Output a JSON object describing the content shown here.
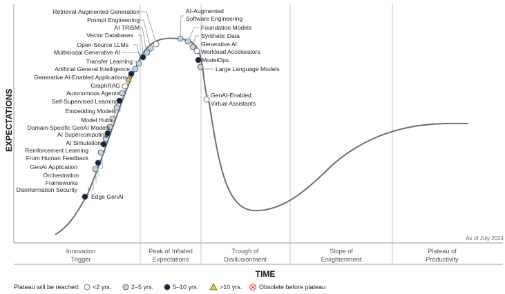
{
  "axes": {
    "y_label": "EXPECTATIONS",
    "x_label": "TIME"
  },
  "as_of": "As of July 2024",
  "phases": [
    {
      "line1": "Innovation",
      "line2": "Trigger"
    },
    {
      "line1": "Peak of Inflated",
      "line2": "Expectations"
    },
    {
      "line1": "Trough of",
      "line2": "Disillusionment"
    },
    {
      "line1": "Slope of",
      "line2": "Enlightenment"
    },
    {
      "line1": "Plateau of",
      "line2": "Productivity"
    }
  ],
  "legend": {
    "title": "Plateau will be reached:",
    "items": [
      {
        "marker": "white-circle",
        "label": "<2 yrs."
      },
      {
        "marker": "light-blue-circle",
        "label": "2–5 yrs."
      },
      {
        "marker": "navy-circle",
        "label": "5–10 yrs."
      },
      {
        "marker": "yellow-triangle",
        "label": ">10 yrs."
      },
      {
        "marker": "red-x-circle",
        "label": "Obsolete before plateau"
      }
    ]
  },
  "colors": {
    "white": "#ffffff",
    "light_blue": "#bcd6ea",
    "navy": "#12264a",
    "yellow": "#f5c518",
    "red": "#e03a3a",
    "curve": "#6d6d6d",
    "grid": "#c4c4c4"
  },
  "technologies": [
    {
      "name": "Retrieval-Augmented Generation",
      "marker": "light-blue-circle"
    },
    {
      "name": "Prompt Engineering",
      "marker": "light-blue-circle"
    },
    {
      "name": "AI TRiSM",
      "marker": "white-circle"
    },
    {
      "name": "Vector Databases",
      "marker": "light-blue-circle"
    },
    {
      "name": "Open-Source LLMs",
      "marker": "light-blue-circle"
    },
    {
      "name": "Multimodal Generative AI",
      "marker": "navy-circle"
    },
    {
      "name": "Transfer Learning",
      "marker": "light-blue-circle"
    },
    {
      "name": "Artificial General Intelligence",
      "marker": "light-blue-circle"
    },
    {
      "name": "Generative AI-Enabled Applications",
      "marker": "navy-circle"
    },
    {
      "name": "GraphRAG",
      "marker": "yellow-triangle"
    },
    {
      "name": "Autonomous Agents",
      "marker": "white-circle"
    },
    {
      "name": "Self-Supervised Learning",
      "marker": "light-blue-circle"
    },
    {
      "name": "Embedding Models",
      "marker": "navy-circle"
    },
    {
      "name": "Model Hubs",
      "marker": "light-blue-circle"
    },
    {
      "name": "Domain-Specific GenAI Models",
      "marker": "light-blue-circle"
    },
    {
      "name": "AI Supercomputing",
      "marker": "light-blue-circle"
    },
    {
      "name": "AI Simulation",
      "marker": "navy-circle"
    },
    {
      "name": "Reinforcement Learning",
      "marker": "light-blue-circle"
    },
    {
      "name": "From Human Feedback",
      "marker": "light-blue-circle"
    },
    {
      "name": "GenAI Application",
      "marker": "navy-circle"
    },
    {
      "name": "Orchestration",
      "marker": "light-blue-circle"
    },
    {
      "name": "Frameworks",
      "marker": "light-blue-circle"
    },
    {
      "name": "Disinformation Security",
      "marker": "light-blue-circle"
    },
    {
      "name": "Edge GenAI",
      "marker": "navy-circle"
    },
    {
      "name": "AI-Augmented",
      "marker": "light-blue-circle"
    },
    {
      "name": "Software Engineering",
      "marker": "light-blue-circle"
    },
    {
      "name": "Foundation Models",
      "marker": "light-blue-circle"
    },
    {
      "name": "Synthetic Data",
      "marker": "light-blue-circle"
    },
    {
      "name": "Generative AI",
      "marker": "white-circle"
    },
    {
      "name": "Workload Accelerators",
      "marker": "white-circle"
    },
    {
      "name": "ModelOps",
      "marker": "navy-circle"
    },
    {
      "name": "Large Language Models",
      "marker": "light-blue-circle"
    },
    {
      "name": "GenAI-Enabled",
      "marker": "white-circle"
    },
    {
      "name": "Virtual Assistants",
      "marker": "white-circle"
    }
  ]
}
